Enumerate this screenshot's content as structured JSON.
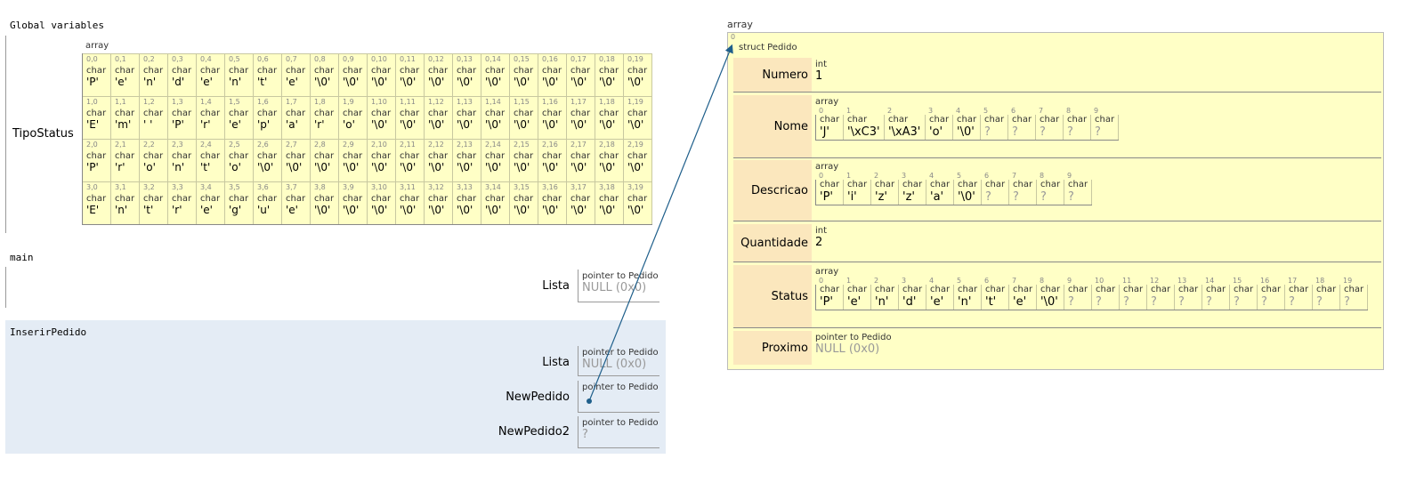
{
  "frames": {
    "global": "Global variables",
    "main": "main",
    "inserir": "InserirPedido"
  },
  "global_vars": {
    "tipo_status": {
      "name": "TipoStatus",
      "type_label": "array",
      "elem_type": "char",
      "rows": [
        [
          "'P'",
          "'e'",
          "'n'",
          "'d'",
          "'e'",
          "'n'",
          "'t'",
          "'e'",
          "'\\0'",
          "'\\0'",
          "'\\0'",
          "'\\0'",
          "'\\0'",
          "'\\0'",
          "'\\0'",
          "'\\0'",
          "'\\0'",
          "'\\0'",
          "'\\0'",
          "'\\0'"
        ],
        [
          "'E'",
          "'m'",
          "' '",
          "'P'",
          "'r'",
          "'e'",
          "'p'",
          "'a'",
          "'r'",
          "'o'",
          "'\\0'",
          "'\\0'",
          "'\\0'",
          "'\\0'",
          "'\\0'",
          "'\\0'",
          "'\\0'",
          "'\\0'",
          "'\\0'",
          "'\\0'"
        ],
        [
          "'P'",
          "'r'",
          "'o'",
          "'n'",
          "'t'",
          "'o'",
          "'\\0'",
          "'\\0'",
          "'\\0'",
          "'\\0'",
          "'\\0'",
          "'\\0'",
          "'\\0'",
          "'\\0'",
          "'\\0'",
          "'\\0'",
          "'\\0'",
          "'\\0'",
          "'\\0'",
          "'\\0'"
        ],
        [
          "'E'",
          "'n'",
          "'t'",
          "'r'",
          "'e'",
          "'g'",
          "'u'",
          "'e'",
          "'\\0'",
          "'\\0'",
          "'\\0'",
          "'\\0'",
          "'\\0'",
          "'\\0'",
          "'\\0'",
          "'\\0'",
          "'\\0'",
          "'\\0'",
          "'\\0'",
          "'\\0'"
        ]
      ]
    }
  },
  "main_vars": {
    "lista": {
      "name": "Lista",
      "type": "pointer to Pedido",
      "value": "NULL (0x0)"
    }
  },
  "inserir_vars": {
    "lista": {
      "name": "Lista",
      "type": "pointer to Pedido",
      "value": "NULL (0x0)"
    },
    "new_pedido": {
      "name": "NewPedido",
      "type": "pointer to Pedido",
      "value": ""
    },
    "new_pedido2": {
      "name": "NewPedido2",
      "type": "pointer to Pedido",
      "value": "?"
    }
  },
  "heap": {
    "array_label": "array",
    "index": "0",
    "struct_label": "struct Pedido",
    "fields": {
      "numero": {
        "name": "Numero",
        "type": "int",
        "value": "1"
      },
      "nome": {
        "name": "Nome",
        "type": "array",
        "elem_type": "char",
        "values": [
          "'J'",
          "'\\xC3'",
          "'\\xA3'",
          "'o'",
          "'\\0'",
          "?",
          "?",
          "?",
          "?",
          "?"
        ]
      },
      "descricao": {
        "name": "Descricao",
        "type": "array",
        "elem_type": "char",
        "values": [
          "'P'",
          "'i'",
          "'z'",
          "'z'",
          "'a'",
          "'\\0'",
          "?",
          "?",
          "?",
          "?"
        ]
      },
      "quantidade": {
        "name": "Quantidade",
        "type": "int",
        "value": "2"
      },
      "status": {
        "name": "Status",
        "type": "array",
        "elem_type": "char",
        "values": [
          "'P'",
          "'e'",
          "'n'",
          "'d'",
          "'e'",
          "'n'",
          "'t'",
          "'e'",
          "'\\0'",
          "?",
          "?",
          "?",
          "?",
          "?",
          "?",
          "?",
          "?",
          "?",
          "?",
          "?"
        ]
      },
      "proximo": {
        "name": "Proximo",
        "type": "pointer to Pedido",
        "value": "NULL (0x0)"
      }
    }
  },
  "colors": {
    "struct_bg": "#ffffc6",
    "field_name_bg": "#fbe7bd",
    "frame_active_bg": "#e4ecf5",
    "arrow": "#1f5f8b"
  }
}
